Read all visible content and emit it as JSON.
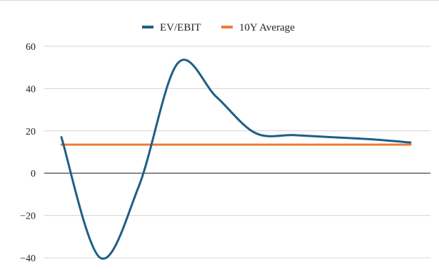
{
  "chart_data": {
    "type": "line",
    "title": "",
    "xlabel": "",
    "ylabel": "",
    "ylim": [
      -40,
      60
    ],
    "yticks": [
      60,
      40,
      20,
      0,
      -20,
      -40
    ],
    "y_tick_labels": [
      "60",
      "40",
      "20",
      "0",
      "−20",
      "−40"
    ],
    "grid": true,
    "legend_position": "top-center",
    "x": [
      0,
      1,
      2,
      3,
      4,
      5,
      6,
      7,
      8,
      9
    ],
    "series": [
      {
        "name": "EV/EBIT",
        "color": "#1f5f86",
        "values": [
          17,
          -40,
          -6,
          52,
          36,
          19,
          18,
          17,
          16,
          14.5
        ]
      },
      {
        "name": "10Y Average",
        "color": "#ee7c37",
        "values": [
          13.5,
          13.5,
          13.5,
          13.5,
          13.5,
          13.5,
          13.5,
          13.5,
          13.5,
          13.5
        ]
      }
    ]
  }
}
